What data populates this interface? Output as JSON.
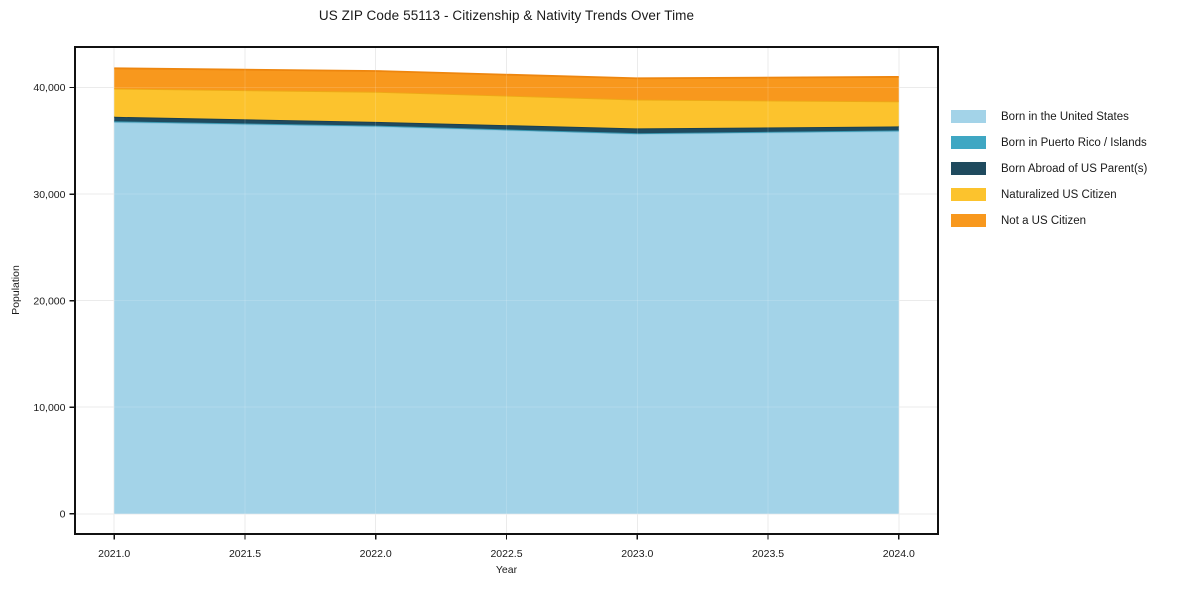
{
  "chart_data": {
    "type": "area",
    "stacked": true,
    "title": "US ZIP Code 55113 - Citizenship & Nativity Trends Over Time",
    "xlabel": "Year",
    "ylabel": "Population",
    "x": [
      2021,
      2022,
      2023,
      2024
    ],
    "series": [
      {
        "name": "Born in the United States",
        "color": "#a3d3e8",
        "edge": "#90c6de",
        "values": [
          36750,
          36350,
          35650,
          35900
        ]
      },
      {
        "name": "Born in Puerto Rico / Islands",
        "color": "#3fa7c3",
        "edge": "#3795ae",
        "values": [
          75,
          70,
          60,
          70
        ]
      },
      {
        "name": "Born Abroad of US Parent(s)",
        "color": "#1f4a5e",
        "edge": "#1a3f50",
        "values": [
          425,
          355,
          450,
          375
        ]
      },
      {
        "name": "Naturalized US Citizen",
        "color": "#fcc32d",
        "edge": "#eda916",
        "values": [
          2650,
          2825,
          2700,
          2350
        ]
      },
      {
        "name": "Not a US Citizen",
        "color": "#f8981d",
        "edge": "#ee860e",
        "values": [
          1900,
          1950,
          2000,
          2300
        ]
      }
    ],
    "xticks": {
      "values": [
        2021,
        2021.5,
        2022,
        2022.5,
        2023,
        2023.5,
        2024
      ],
      "labels": [
        "2021.0",
        "2021.5",
        "2022.0",
        "2022.5",
        "2023.0",
        "2023.5",
        "2024.0"
      ]
    },
    "yticks": {
      "values": [
        0,
        10000,
        20000,
        30000,
        40000
      ],
      "labels": [
        "0",
        "10,000",
        "20,000",
        "30,000",
        "40,000"
      ]
    },
    "xlim": [
      2020.85,
      2024.15
    ],
    "ylim": [
      -1900,
      43800
    ],
    "grid": true,
    "legend_position": "right-outside"
  },
  "colors": {
    "grid": "#e8e8e8",
    "grid_over": "#ffffff",
    "spine": "#111111",
    "tick": "#111111",
    "text": "#1a1a1a",
    "background": "#ffffff"
  }
}
